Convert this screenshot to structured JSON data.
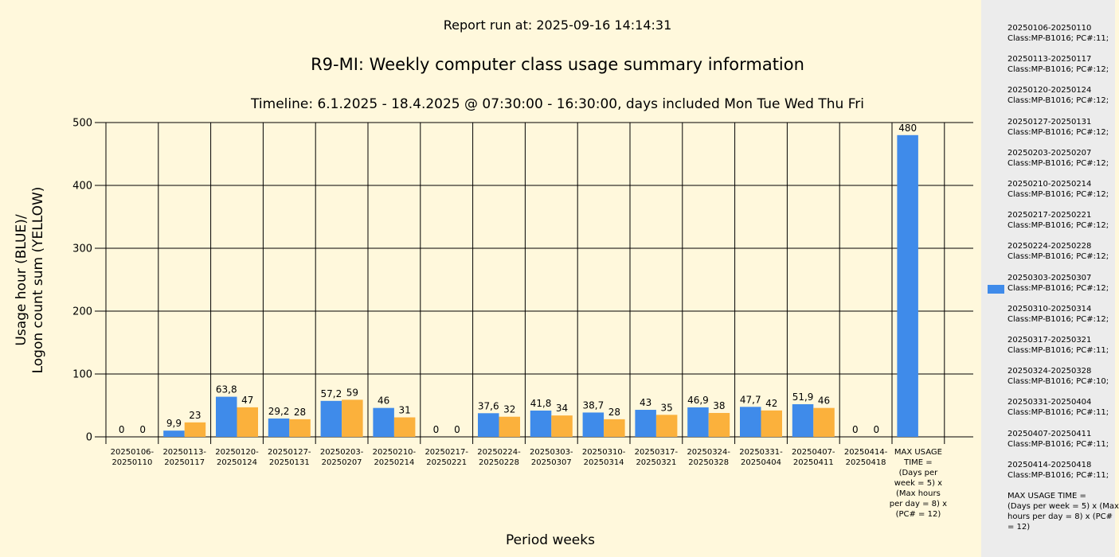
{
  "header": {
    "report_run": "Report run at: 2025-09-16 14:14:31",
    "title": "R9-MI: Weekly computer class usage summary information",
    "timeline": "Timeline:  6.1.2025  - 18.4.2025  @  07:30:00 -  16:30:00, days included Mon Tue Wed Thu Fri"
  },
  "colors": {
    "usage": "#3f8bea",
    "logons": "#fbb13c",
    "background": "#fff8dc",
    "legend_bg": "#ececec"
  },
  "chart_data": {
    "type": "bar",
    "title": "R9-MI: Weekly computer class usage summary information",
    "xlabel": "Period weeks",
    "ylabel_lines": [
      "Usage hour (BLUE)/",
      "Logon count sum (YELLOW)"
    ],
    "ylim": [
      0,
      500
    ],
    "yticks": [
      "0",
      "100",
      "200",
      "300",
      "400",
      "500"
    ],
    "grid": true,
    "legend_position": "right",
    "categories": [
      [
        "20250106-",
        "20250110"
      ],
      [
        "20250113-",
        "20250117"
      ],
      [
        "20250120-",
        "20250124"
      ],
      [
        "20250127-",
        "20250131"
      ],
      [
        "20250203-",
        "20250207"
      ],
      [
        "20250210-",
        "20250214"
      ],
      [
        "20250217-",
        "20250221"
      ],
      [
        "20250224-",
        "20250228"
      ],
      [
        "20250303-",
        "20250307"
      ],
      [
        "20250310-",
        "20250314"
      ],
      [
        "20250317-",
        "20250321"
      ],
      [
        "20250324-",
        "20250328"
      ],
      [
        "20250331-",
        "20250404"
      ],
      [
        "20250407-",
        "20250411"
      ],
      [
        "20250414-",
        "20250418"
      ],
      [
        "MAX USAGE",
        "TIME =",
        "(Days per",
        "week = 5) x",
        "(Max hours",
        "per day = 8) x",
        "(PC# = 12)"
      ]
    ],
    "series": [
      {
        "color": "#3f8bea",
        "values": [
          0,
          9.9,
          63.8,
          29.2,
          57.2,
          46,
          0,
          37.6,
          41.8,
          38.7,
          43,
          46.9,
          47.7,
          51.9,
          0,
          480
        ],
        "labels": [
          "0",
          "9,9",
          "63,8",
          "29,2",
          "57,2",
          "46",
          "0",
          "37,6",
          "41,8",
          "38,7",
          "43",
          "46,9",
          "47,7",
          "51,9",
          "0",
          "480"
        ]
      },
      {
        "color": "#fbb13c",
        "values": [
          0,
          23,
          47,
          28,
          59,
          31,
          0,
          32,
          34,
          28,
          35,
          38,
          42,
          46,
          0,
          null
        ],
        "labels": [
          "0",
          "23",
          "47",
          "28",
          "59",
          "31",
          "0",
          "32",
          "34",
          "28",
          "35",
          "38",
          "42",
          "46",
          "0",
          null
        ]
      }
    ]
  },
  "legend": {
    "swatch_index": 8,
    "items": [
      [
        "20250106-20250110",
        "Class:MP-B1016; PC#:11;"
      ],
      [
        "20250113-20250117",
        "Class:MP-B1016; PC#:12;"
      ],
      [
        "20250120-20250124",
        "Class:MP-B1016; PC#:12;"
      ],
      [
        "20250127-20250131",
        "Class:MP-B1016; PC#:12;"
      ],
      [
        "20250203-20250207",
        "Class:MP-B1016; PC#:12;"
      ],
      [
        "20250210-20250214",
        "Class:MP-B1016; PC#:12;"
      ],
      [
        "20250217-20250221",
        "Class:MP-B1016; PC#:12;"
      ],
      [
        "20250224-20250228",
        "Class:MP-B1016; PC#:12;"
      ],
      [
        "20250303-20250307",
        "Class:MP-B1016; PC#:12;"
      ],
      [
        "20250310-20250314",
        "Class:MP-B1016; PC#:12;"
      ],
      [
        "20250317-20250321",
        "Class:MP-B1016; PC#:11;"
      ],
      [
        "20250324-20250328",
        "Class:MP-B1016; PC#:10;"
      ],
      [
        "20250331-20250404",
        "Class:MP-B1016; PC#:11;"
      ],
      [
        "20250407-20250411",
        "Class:MP-B1016; PC#:11;"
      ],
      [
        "20250414-20250418",
        "Class:MP-B1016; PC#:11;"
      ],
      [
        "MAX USAGE TIME =",
        " (Days per week = 5) x (Max",
        "hours per day = 8) x (PC#",
        "= 12)"
      ]
    ]
  }
}
